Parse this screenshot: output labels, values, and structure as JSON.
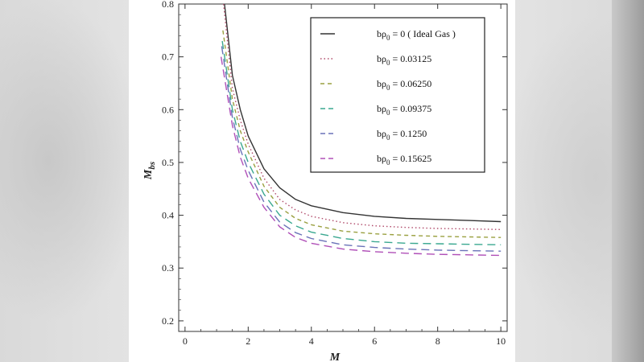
{
  "chart_data": {
    "type": "line",
    "xlabel": "M",
    "ylabel": "M",
    "ylabel_sub": "bs",
    "xlim": [
      -0.2,
      10.2
    ],
    "ylim": [
      0.18,
      0.8
    ],
    "x_ticks": [
      "0",
      "2",
      "4",
      "6",
      "8",
      "10"
    ],
    "y_ticks": [
      "0.2",
      "0.3",
      "0.4",
      "0.5",
      "0.6",
      "0.7",
      "0.8"
    ],
    "legend_position": "top-right",
    "legend_prefix": "bρ",
    "legend_sub": "0",
    "series": [
      {
        "name": "= 0 ( Ideal Gas )",
        "color": "#333333",
        "dash": "solid",
        "x": [
          1.25,
          1.5,
          1.75,
          2,
          2.5,
          3,
          3.5,
          4,
          5,
          6,
          7,
          8,
          9,
          10
        ],
        "y": [
          0.8,
          0.665,
          0.6,
          0.55,
          0.488,
          0.452,
          0.43,
          0.418,
          0.405,
          0.398,
          0.394,
          0.392,
          0.39,
          0.388
        ]
      },
      {
        "name": "= 0.03125",
        "color": "#b04a6a",
        "dash": "dot",
        "x": [
          1.22,
          1.5,
          1.75,
          2,
          2.5,
          3,
          3.5,
          4,
          5,
          6,
          7,
          8,
          9,
          10
        ],
        "y": [
          0.8,
          0.64,
          0.58,
          0.535,
          0.47,
          0.43,
          0.41,
          0.398,
          0.386,
          0.38,
          0.377,
          0.375,
          0.374,
          0.373
        ]
      },
      {
        "name": "= 0.06250",
        "color": "#9aa040",
        "dash": "dash",
        "x": [
          1.2,
          1.5,
          1.75,
          2,
          2.5,
          3,
          3.5,
          4,
          5,
          6,
          7,
          8,
          9,
          10
        ],
        "y": [
          0.75,
          0.62,
          0.56,
          0.52,
          0.455,
          0.415,
          0.394,
          0.382,
          0.37,
          0.365,
          0.362,
          0.36,
          0.359,
          0.358
        ]
      },
      {
        "name": "= 0.09375",
        "color": "#3aa890",
        "dash": "longdash",
        "x": [
          1.18,
          1.5,
          1.75,
          2,
          2.5,
          3,
          3.5,
          4,
          5,
          6,
          7,
          8,
          9,
          10
        ],
        "y": [
          0.73,
          0.6,
          0.54,
          0.5,
          0.44,
          0.4,
          0.38,
          0.368,
          0.356,
          0.35,
          0.347,
          0.346,
          0.345,
          0.344
        ]
      },
      {
        "name": "= 0.1250",
        "color": "#6a72b8",
        "dash": "longdash",
        "x": [
          1.16,
          1.5,
          1.75,
          2,
          2.5,
          3,
          3.5,
          4,
          5,
          6,
          7,
          8,
          9,
          10
        ],
        "y": [
          0.72,
          0.585,
          0.525,
          0.485,
          0.425,
          0.387,
          0.367,
          0.356,
          0.344,
          0.339,
          0.336,
          0.334,
          0.333,
          0.332
        ]
      },
      {
        "name": "= 0.15625",
        "color": "#b050b8",
        "dash": "longdash",
        "x": [
          1.14,
          1.5,
          1.75,
          2,
          2.5,
          3,
          3.5,
          4,
          5,
          6,
          7,
          8,
          9,
          10
        ],
        "y": [
          0.7,
          0.57,
          0.51,
          0.47,
          0.415,
          0.378,
          0.358,
          0.347,
          0.336,
          0.331,
          0.328,
          0.326,
          0.325,
          0.324
        ]
      }
    ]
  }
}
